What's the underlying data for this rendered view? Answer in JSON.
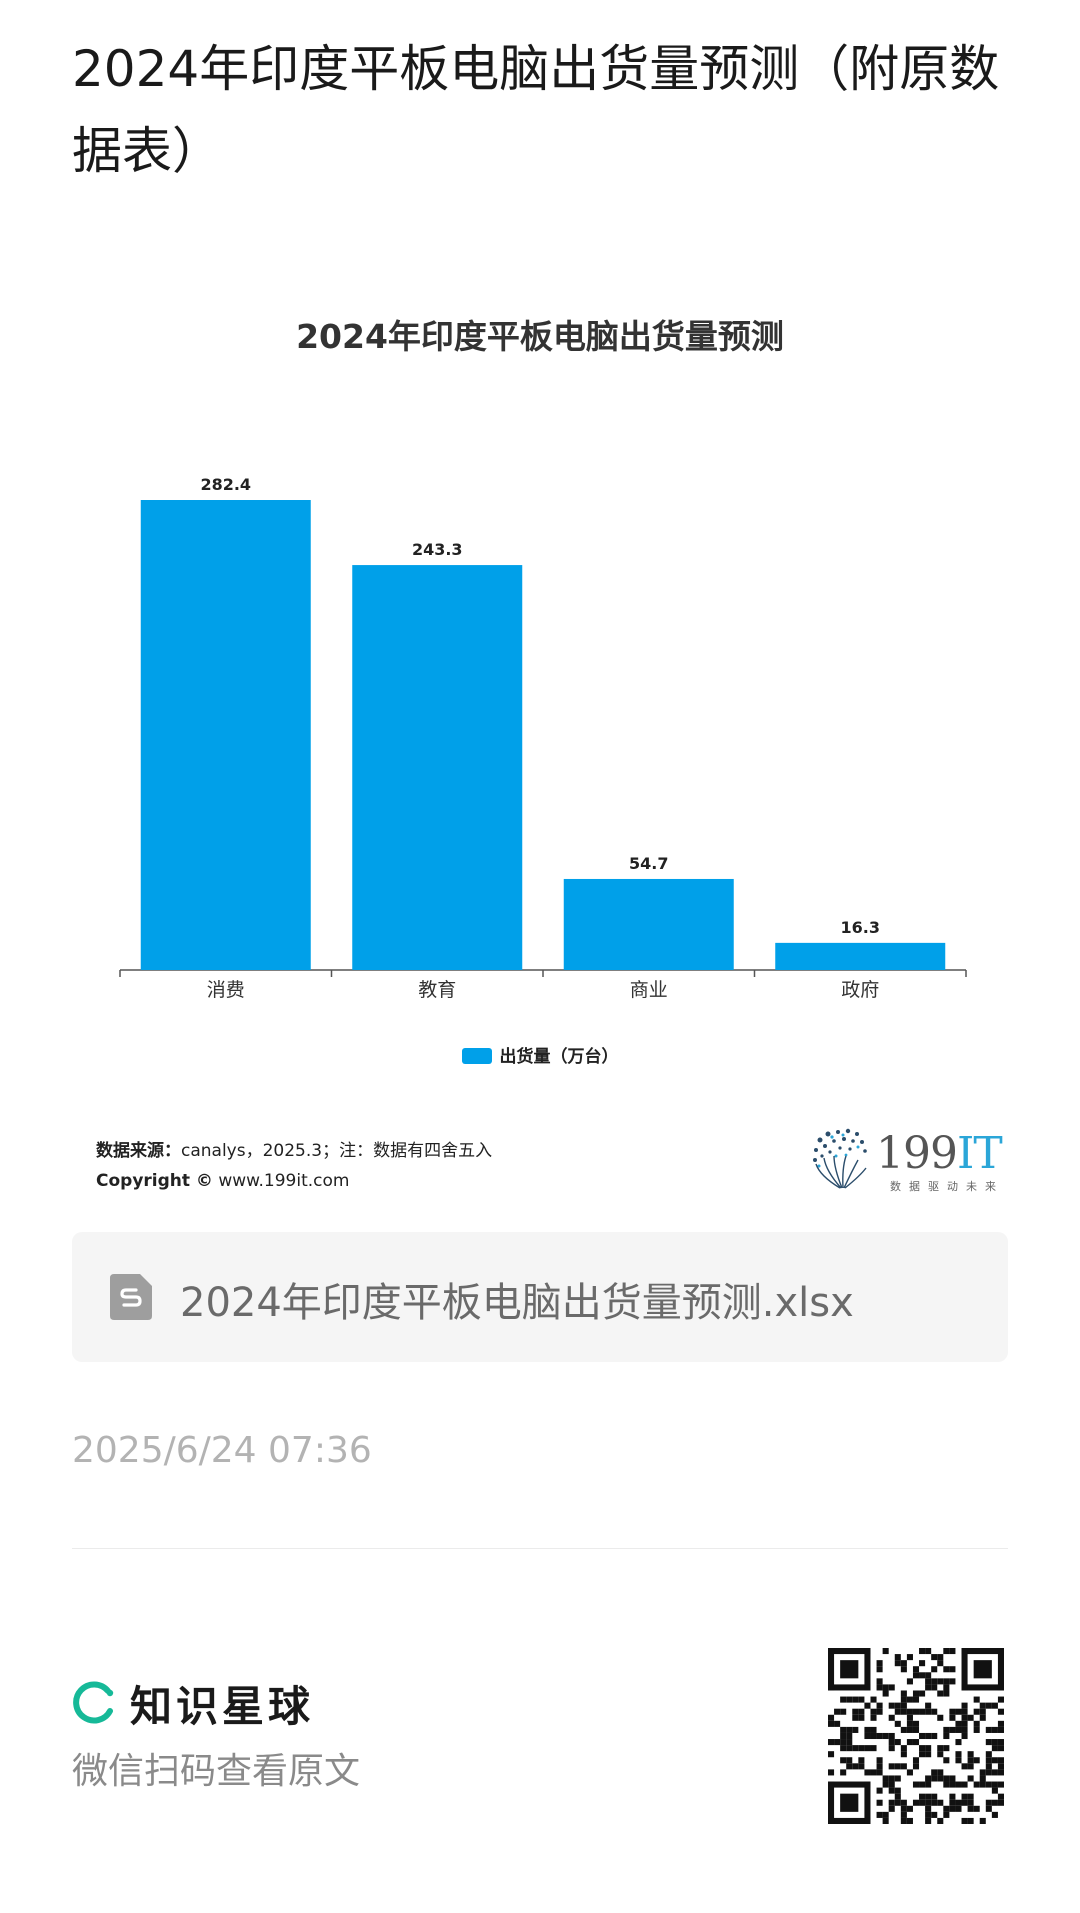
{
  "header": {
    "title": "2024年印度平板电脑出货量预测（附原数据表）"
  },
  "chart_data": {
    "type": "bar",
    "title": "2024年印度平板电脑出货量预测",
    "categories": [
      "消费",
      "教育",
      "商业",
      "政府"
    ],
    "series": [
      {
        "name": "出货量（万台）",
        "values": [
          282.4,
          243.3,
          54.7,
          16.3
        ]
      }
    ],
    "data_labels": [
      "282.4",
      "243.3",
      "54.7",
      "16.3"
    ],
    "ylim": [
      0,
      282.4
    ],
    "grid": false,
    "legend": "bottom-center",
    "bar_color": "#00a0e9"
  },
  "source": {
    "label": "数据来源：",
    "text": "canalys，2025.3；注：数据有四舍五入",
    "copyright_label": "Copyright ©",
    "copyright_text": " www.199it.com"
  },
  "brand": {
    "name_num": "199",
    "name_it": "IT",
    "slogan": "数据驱动未来"
  },
  "file": {
    "icon": "spreadsheet-file-icon",
    "name": "2024年印度平板电脑出货量预测.xlsx"
  },
  "timestamp": "2025/6/24 07:36",
  "footer": {
    "logo_name": "知识星球",
    "logo_color": "#16b998",
    "scan_hint": "微信扫码查看原文",
    "qr_icon": "qr-code-icon"
  }
}
